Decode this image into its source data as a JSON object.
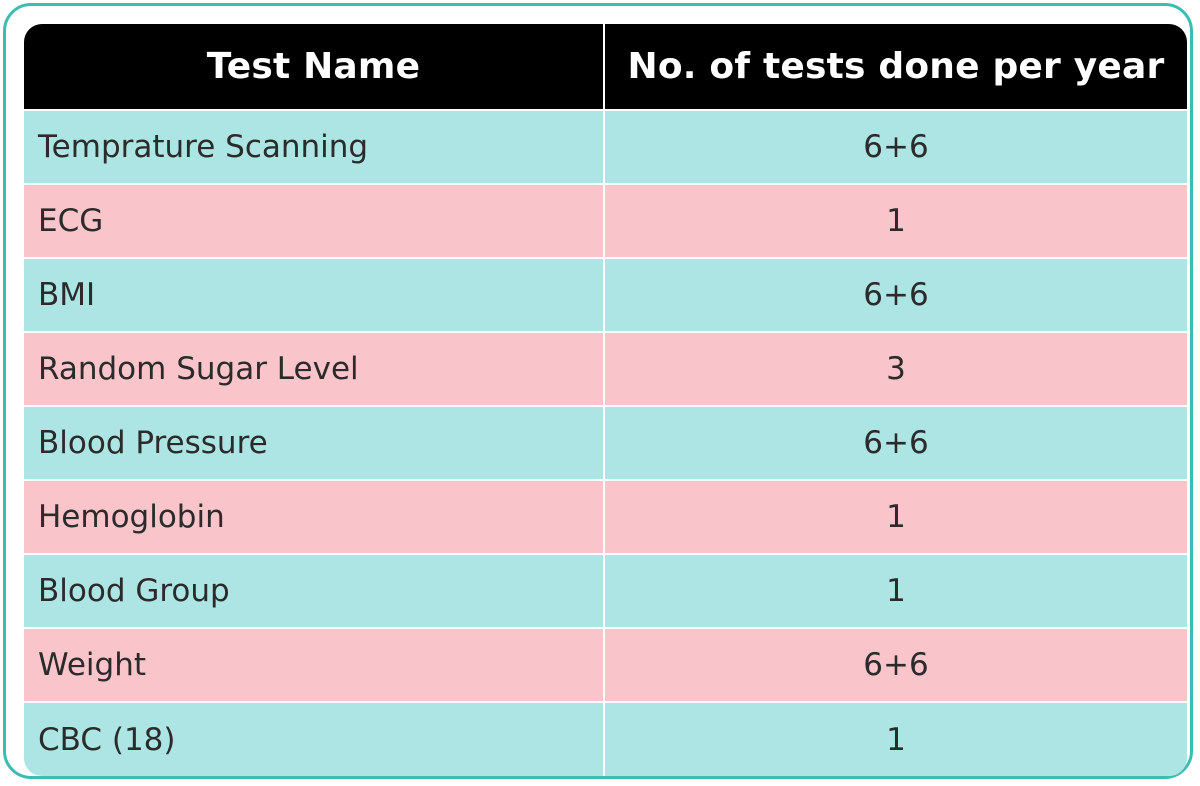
{
  "colors": {
    "frame_border": "#3bbdb3",
    "header_bg": "#000000",
    "header_text": "#ffffff",
    "row_teal": "#ade5e4",
    "row_pink": "#f9c5ca",
    "cell_text": "#2b2b2b"
  },
  "table": {
    "headers": [
      "Test Name",
      "No. of tests done per year"
    ],
    "rows": [
      {
        "name": "Temprature Scanning",
        "count": "6+6"
      },
      {
        "name": "ECG",
        "count": "1"
      },
      {
        "name": "BMI",
        "count": "6+6"
      },
      {
        "name": "Random Sugar Level",
        "count": "3"
      },
      {
        "name": "Blood Pressure",
        "count": "6+6"
      },
      {
        "name": "Hemoglobin",
        "count": "1"
      },
      {
        "name": "Blood Group",
        "count": "1"
      },
      {
        "name": "Weight",
        "count": "6+6"
      },
      {
        "name": "CBC (18)",
        "count": "1"
      }
    ]
  }
}
